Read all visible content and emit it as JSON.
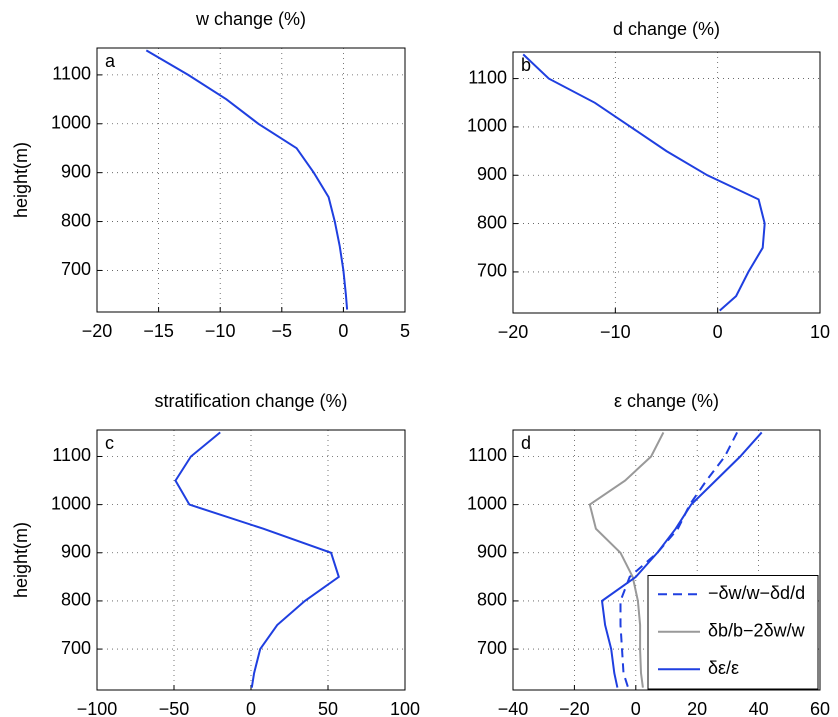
{
  "chart_data": [
    {
      "type": "line",
      "title": "w change (%)",
      "panel_label": "a",
      "ylabel": "height(m)",
      "y": [
        1150,
        1100,
        1050,
        1000,
        950,
        900,
        850,
        800,
        750,
        700,
        650,
        620
      ],
      "series": [
        {
          "color": "#1f3fe0",
          "line_style": "solid",
          "values": [
            -16,
            -12.6,
            -9.5,
            -6.9,
            -3.8,
            -2.4,
            -1.2,
            -0.7,
            -0.3,
            0,
            0.2,
            0.3
          ]
        }
      ],
      "xlim": [
        -20,
        5
      ],
      "xticks": [
        {
          "value": -20,
          "label": "−20"
        },
        {
          "value": -15,
          "label": "−15"
        },
        {
          "value": -10,
          "label": "−10"
        },
        {
          "value": -5,
          "label": "−5"
        },
        0,
        5
      ],
      "ylim": [
        615,
        1155
      ],
      "yticks": [
        700,
        800,
        900,
        1000,
        1100
      ],
      "grid": true
    },
    {
      "type": "line",
      "title": "d change (%)",
      "panel_label": "b",
      "y": [
        1150,
        1100,
        1050,
        1000,
        950,
        900,
        850,
        800,
        750,
        700,
        650,
        620
      ],
      "series": [
        {
          "color": "#1f3fe0",
          "line_style": "solid",
          "values": [
            -19,
            -16.5,
            -12,
            -8.5,
            -5,
            -1,
            4,
            4.6,
            4.4,
            3,
            1.8,
            0.2
          ]
        }
      ],
      "xlim": [
        -20,
        10
      ],
      "xticks": [
        {
          "value": -20,
          "label": "−20"
        },
        {
          "value": -10,
          "label": "−10"
        },
        0,
        10
      ],
      "ylim": [
        615,
        1155
      ],
      "yticks": [
        700,
        800,
        900,
        1000,
        1100
      ],
      "grid": true
    },
    {
      "type": "line",
      "title": "stratification change (%)",
      "panel_label": "c",
      "ylabel": "height(m)",
      "y": [
        1150,
        1100,
        1050,
        1000,
        950,
        900,
        850,
        800,
        750,
        700,
        650,
        620
      ],
      "series": [
        {
          "color": "#1f3fe0",
          "line_style": "solid",
          "values": [
            -20,
            -39,
            -49,
            -40,
            8,
            52,
            57,
            35,
            17,
            6,
            2,
            0.5
          ]
        }
      ],
      "xlim": [
        -100,
        100
      ],
      "xticks": [
        {
          "value": -100,
          "label": "−100"
        },
        {
          "value": -50,
          "label": "−50"
        },
        0,
        50,
        100
      ],
      "ylim": [
        615,
        1155
      ],
      "yticks": [
        700,
        800,
        900,
        1000,
        1100
      ],
      "grid": true
    },
    {
      "type": "line",
      "title": "ε change (%)",
      "panel_label": "d",
      "y": [
        1150,
        1100,
        1050,
        1000,
        950,
        900,
        850,
        800,
        750,
        700,
        650,
        620
      ],
      "series": [
        {
          "name": "−δw/w−δd/d",
          "color": "#1f3fe0",
          "line_style": "dashed",
          "values": [
            33,
            29,
            23,
            17.6,
            13.7,
            7,
            -2,
            -5,
            -5,
            -4.5,
            -4,
            -2.5
          ]
        },
        {
          "name": "δb/b−2δw/w",
          "color": "#999999",
          "line_style": "solid",
          "values": [
            9,
            5,
            -3.5,
            -15,
            -13,
            -5,
            -1,
            0.7,
            1.4,
            1.4,
            1.7,
            2.3
          ]
        },
        {
          "name": "δε/ε",
          "color": "#1f3fe0",
          "line_style": "solid",
          "values": [
            41,
            34,
            26,
            18,
            13,
            7,
            0,
            -11,
            -10,
            -8,
            -7,
            -6
          ]
        }
      ],
      "xlim": [
        -40,
        60
      ],
      "xticks": [
        {
          "value": -40,
          "label": "−40"
        },
        {
          "value": -20,
          "label": "−20"
        },
        0,
        20,
        40,
        60
      ],
      "ylim": [
        615,
        1155
      ],
      "yticks": [
        700,
        800,
        900,
        1000,
        1100
      ],
      "grid": true,
      "legend": "lower right"
    }
  ]
}
